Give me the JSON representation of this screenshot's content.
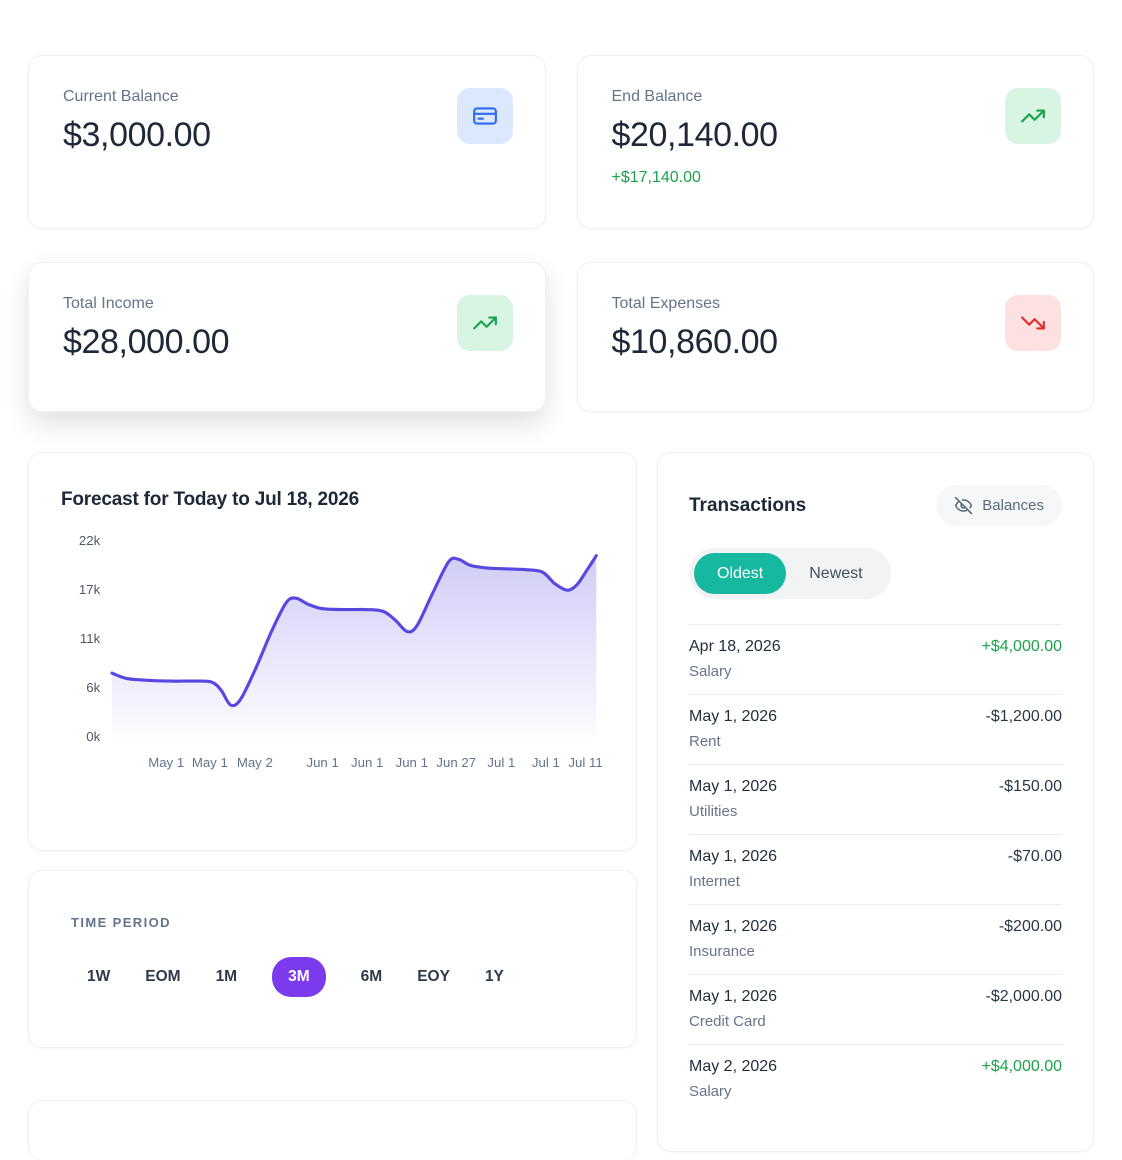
{
  "summary_cards": [
    {
      "label": "Current Balance",
      "value": "$3,000.00",
      "icon": "credit-card-icon",
      "icon_color": "#2f6bed",
      "icon_bg": "#dbe8fe"
    },
    {
      "label": "End Balance",
      "value": "$20,140.00",
      "delta": "+$17,140.00",
      "icon": "trending-up-icon",
      "icon_color": "#18a44c",
      "icon_bg": "#d8f5e3"
    },
    {
      "label": "Total Income",
      "value": "$28,000.00",
      "icon": "trending-up-icon",
      "icon_color": "#18a44c",
      "icon_bg": "#d8f5e3"
    },
    {
      "label": "Total Expenses",
      "value": "$10,860.00",
      "icon": "trending-down-icon",
      "icon_color": "#e02d2d",
      "icon_bg": "#fde1e1"
    }
  ],
  "forecast": {
    "title": "Forecast for Today to Jul 18, 2026"
  },
  "chart_data": {
    "type": "area",
    "title": "Forecast for Today to Jul 18, 2026",
    "line_color": "#5847e0",
    "fill_color": "#6358e4",
    "y_ticks": [
      "22k",
      "17k",
      "11k",
      "6k",
      "0k"
    ],
    "y_max_value": 22.2,
    "y_unit": "thousands of dollars",
    "grid": "off",
    "x_tick_labels": [
      {
        "label": "May 1",
        "pos": 0.112
      },
      {
        "label": "May 1",
        "pos": 0.202
      },
      {
        "label": "May 2",
        "pos": 0.295
      },
      {
        "label": "Jun 1",
        "pos": 0.435
      },
      {
        "label": "Jun 1",
        "pos": 0.527
      },
      {
        "label": "Jun 1",
        "pos": 0.619
      },
      {
        "label": "Jun 27",
        "pos": 0.711
      },
      {
        "label": "Jul 1",
        "pos": 0.804
      },
      {
        "label": "Jul 1",
        "pos": 0.896
      },
      {
        "label": "Jul 11",
        "pos": 0.978
      }
    ],
    "points": [
      {
        "x": 0.0,
        "y": 7.2
      },
      {
        "x": 0.03,
        "y": 6.6
      },
      {
        "x": 0.07,
        "y": 6.4
      },
      {
        "x": 0.12,
        "y": 6.3
      },
      {
        "x": 0.17,
        "y": 6.3
      },
      {
        "x": 0.205,
        "y": 6.2
      },
      {
        "x": 0.225,
        "y": 5.3
      },
      {
        "x": 0.245,
        "y": 3.6
      },
      {
        "x": 0.265,
        "y": 4.2
      },
      {
        "x": 0.295,
        "y": 7.5
      },
      {
        "x": 0.33,
        "y": 12.0
      },
      {
        "x": 0.36,
        "y": 15.2
      },
      {
        "x": 0.38,
        "y": 15.7
      },
      {
        "x": 0.405,
        "y": 15.0
      },
      {
        "x": 0.435,
        "y": 14.5
      },
      {
        "x": 0.48,
        "y": 14.4
      },
      {
        "x": 0.525,
        "y": 14.4
      },
      {
        "x": 0.56,
        "y": 14.2
      },
      {
        "x": 0.585,
        "y": 13.2
      },
      {
        "x": 0.61,
        "y": 11.9
      },
      {
        "x": 0.63,
        "y": 12.6
      },
      {
        "x": 0.66,
        "y": 16.0
      },
      {
        "x": 0.695,
        "y": 19.8
      },
      {
        "x": 0.715,
        "y": 20.1
      },
      {
        "x": 0.74,
        "y": 19.4
      },
      {
        "x": 0.775,
        "y": 19.1
      },
      {
        "x": 0.82,
        "y": 19.0
      },
      {
        "x": 0.86,
        "y": 18.9
      },
      {
        "x": 0.89,
        "y": 18.6
      },
      {
        "x": 0.915,
        "y": 17.3
      },
      {
        "x": 0.94,
        "y": 16.6
      },
      {
        "x": 0.96,
        "y": 17.2
      },
      {
        "x": 0.98,
        "y": 18.8
      },
      {
        "x": 1.0,
        "y": 20.5
      }
    ]
  },
  "time_period": {
    "heading": "TIME PERIOD",
    "options": [
      "1W",
      "EOM",
      "1M",
      "3M",
      "6M",
      "EOY",
      "1Y"
    ],
    "selected": "3M",
    "selected_color": "#7c3aed"
  },
  "transactions": {
    "title": "Transactions",
    "balances_button": "Balances",
    "sort_options": [
      "Oldest",
      "Newest"
    ],
    "sort_selected": "Oldest",
    "accent_color": "#16b8a0",
    "positive_color": "#1ca24b",
    "items": [
      {
        "date": "Apr 18, 2026",
        "category": "Salary",
        "amount": "+$4,000.00",
        "direction": "positive"
      },
      {
        "date": "May 1, 2026",
        "category": "Rent",
        "amount": "-$1,200.00",
        "direction": "negative"
      },
      {
        "date": "May 1, 2026",
        "category": "Utilities",
        "amount": "-$150.00",
        "direction": "negative"
      },
      {
        "date": "May 1, 2026",
        "category": "Internet",
        "amount": "-$70.00",
        "direction": "negative"
      },
      {
        "date": "May 1, 2026",
        "category": "Insurance",
        "amount": "-$200.00",
        "direction": "negative"
      },
      {
        "date": "May 1, 2026",
        "category": "Credit Card",
        "amount": "-$2,000.00",
        "direction": "negative"
      },
      {
        "date": "May 2, 2026",
        "category": "Salary",
        "amount": "+$4,000.00",
        "direction": "positive"
      }
    ]
  }
}
